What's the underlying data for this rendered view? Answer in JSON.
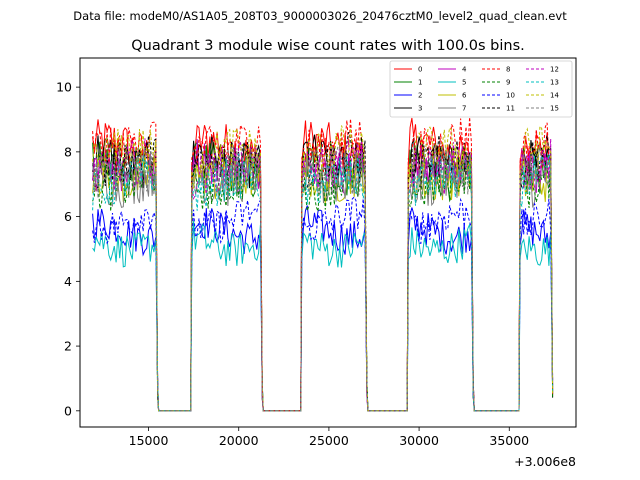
{
  "chart_data": {
    "type": "line",
    "suptitle": "Data file: modeM0/AS1A05_208T03_9000003026_20476cztM0_level2_quad_clean.evt",
    "title": "Quadrant 3 module wise count rates with 100.0s bins.",
    "xlabel": "",
    "ylabel": "",
    "x_offset_label": "+3.006e8",
    "xlim": [
      11200,
      38700
    ],
    "ylim": [
      -0.5,
      10.9
    ],
    "x_ticks": [
      15000,
      20000,
      25000,
      30000,
      35000
    ],
    "y_ticks": [
      0,
      2,
      4,
      6,
      8,
      10
    ],
    "x_tick_labels": [
      "15000",
      "20000",
      "25000",
      "30000",
      "35000"
    ],
    "y_tick_labels": [
      "0",
      "2",
      "4",
      "6",
      "8",
      "10"
    ],
    "grid": false,
    "legend_position": "top-right",
    "bin_seconds": 100,
    "data_segments": [
      [
        11900,
        15500
      ],
      [
        17400,
        21300
      ],
      [
        23500,
        27100
      ],
      [
        29400,
        33000
      ],
      [
        35600,
        37400
      ]
    ],
    "gap_segments": [
      [
        15500,
        17400
      ],
      [
        21300,
        23500
      ],
      [
        27100,
        29400
      ],
      [
        33000,
        35600
      ]
    ],
    "gap_value": 0,
    "series": [
      {
        "name": "0",
        "color": "#ff0000",
        "style": "solid",
        "mean": 8.1
      },
      {
        "name": "1",
        "color": "#008000",
        "style": "solid",
        "mean": 7.4
      },
      {
        "name": "2",
        "color": "#0000ff",
        "style": "solid",
        "mean": 5.6
      },
      {
        "name": "3",
        "color": "#000000",
        "style": "solid",
        "mean": 7.8
      },
      {
        "name": "4",
        "color": "#bf00bf",
        "style": "solid",
        "mean": 7.6
      },
      {
        "name": "5",
        "color": "#00bfbf",
        "style": "solid",
        "mean": 5.2
      },
      {
        "name": "6",
        "color": "#bfbf00",
        "style": "solid",
        "mean": 7.3
      },
      {
        "name": "7",
        "color": "#808080",
        "style": "solid",
        "mean": 7.2
      },
      {
        "name": "8",
        "color": "#ff0000",
        "style": "dashed",
        "mean": 8.3
      },
      {
        "name": "9",
        "color": "#008000",
        "style": "dashed",
        "mean": 7.1
      },
      {
        "name": "10",
        "color": "#0000ff",
        "style": "dashed",
        "mean": 5.9
      },
      {
        "name": "11",
        "color": "#000000",
        "style": "dashed",
        "mean": 7.7
      },
      {
        "name": "12",
        "color": "#bf00bf",
        "style": "dashed",
        "mean": 7.5
      },
      {
        "name": "13",
        "color": "#00bfbf",
        "style": "dashed",
        "mean": 7.0
      },
      {
        "name": "14",
        "color": "#bfbf00",
        "style": "dashed",
        "mean": 7.9
      },
      {
        "name": "15",
        "color": "#808080",
        "style": "dashed",
        "mean": 7.3
      }
    ]
  }
}
